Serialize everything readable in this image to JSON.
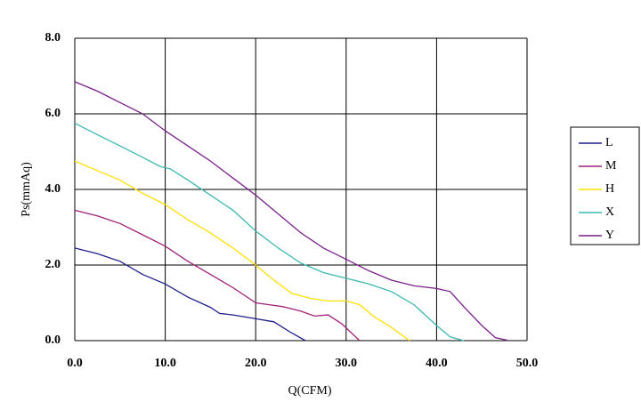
{
  "chart_data": {
    "type": "line",
    "xlabel": "Q(CFM)",
    "ylabel": "Ps(mmAq)",
    "xlim": [
      0,
      50
    ],
    "ylim": [
      0,
      8
    ],
    "xticks": [
      {
        "value": 0,
        "label": "0.0"
      },
      {
        "value": 10,
        "label": "10.0"
      },
      {
        "value": 20,
        "label": "20.0"
      },
      {
        "value": 30,
        "label": "30.0"
      },
      {
        "value": 40,
        "label": "40.0"
      },
      {
        "value": 50,
        "label": "50.0"
      }
    ],
    "yticks": [
      {
        "value": 0,
        "label": "0.0"
      },
      {
        "value": 2,
        "label": "2.0"
      },
      {
        "value": 4,
        "label": "4.0"
      },
      {
        "value": 6,
        "label": "6.0"
      },
      {
        "value": 8,
        "label": "8.0"
      }
    ],
    "grid": true,
    "legend": "right",
    "series": [
      {
        "name": "L",
        "color": "#1f1f8a",
        "x": [
          0,
          2.5,
          5,
          7.5,
          10,
          12.5,
          15,
          16,
          17.5,
          20,
          22,
          24,
          25.5
        ],
        "values": [
          2.45,
          2.3,
          2.1,
          1.75,
          1.5,
          1.15,
          0.88,
          0.72,
          0.68,
          0.58,
          0.5,
          0.2,
          0
        ]
      },
      {
        "name": "M",
        "color": "#a0207a",
        "x": [
          0,
          2.5,
          5,
          7.5,
          10,
          12.5,
          15,
          17.5,
          20,
          21.5,
          23,
          25,
          26.5,
          28,
          29.5,
          31.5
        ],
        "values": [
          3.45,
          3.3,
          3.1,
          2.8,
          2.5,
          2.1,
          1.75,
          1.4,
          1.0,
          0.95,
          0.9,
          0.78,
          0.65,
          0.68,
          0.45,
          0
        ]
      },
      {
        "name": "H",
        "color": "#ffe000",
        "x": [
          0,
          2.5,
          5,
          7.5,
          10,
          12.5,
          15,
          17.5,
          20,
          22,
          24,
          26,
          28,
          30,
          31.5,
          33,
          35,
          37
        ],
        "values": [
          4.75,
          4.5,
          4.25,
          3.9,
          3.6,
          3.2,
          2.85,
          2.45,
          2.0,
          1.6,
          1.25,
          1.12,
          1.05,
          1.05,
          0.95,
          0.65,
          0.35,
          0
        ]
      },
      {
        "name": "X",
        "color": "#3cb8b0",
        "x": [
          0,
          2.5,
          5,
          7.5,
          9.5,
          10.5,
          12.5,
          15,
          17.5,
          20,
          22.5,
          25,
          27.5,
          30,
          32.5,
          35,
          37.5,
          40,
          41.5,
          43
        ],
        "values": [
          5.75,
          5.45,
          5.15,
          4.85,
          4.6,
          4.55,
          4.25,
          3.85,
          3.45,
          2.9,
          2.45,
          2.05,
          1.8,
          1.65,
          1.5,
          1.3,
          0.95,
          0.4,
          0.1,
          0
        ]
      },
      {
        "name": "Y",
        "color": "#7a1f8a",
        "x": [
          0,
          2.5,
          5,
          7.5,
          10,
          12.5,
          15,
          17.5,
          20,
          22.5,
          25,
          27.5,
          30,
          32.5,
          35,
          37.5,
          40,
          41.5,
          43,
          45,
          46.5,
          48
        ],
        "values": [
          6.85,
          6.6,
          6.3,
          6.0,
          5.55,
          5.15,
          4.75,
          4.3,
          3.85,
          3.35,
          2.85,
          2.45,
          2.15,
          1.85,
          1.6,
          1.45,
          1.38,
          1.3,
          0.9,
          0.4,
          0.08,
          0
        ]
      }
    ]
  }
}
